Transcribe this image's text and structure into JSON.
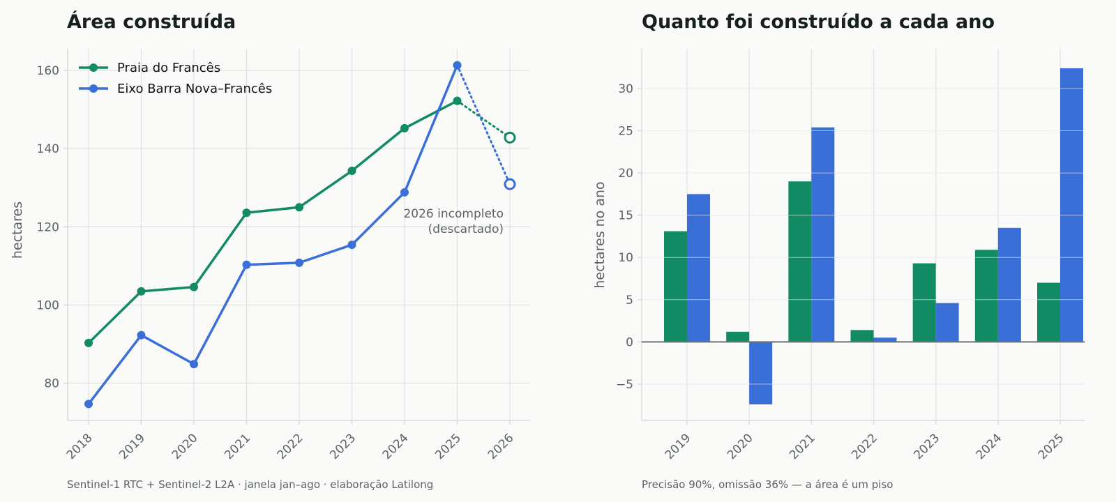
{
  "colors": {
    "green": "#128a63",
    "blue": "#3a6fd8",
    "grid": "#dde3e0",
    "text": "#5b6360"
  },
  "chart_data": [
    {
      "type": "line",
      "title": "Área construída",
      "xlabel": "",
      "ylabel": "hectares",
      "x": [
        "2018",
        "2019",
        "2020",
        "2021",
        "2022",
        "2023",
        "2024",
        "2025",
        "2026"
      ],
      "ylim": [
        70.5,
        165.5
      ],
      "yticks": [
        80,
        100,
        120,
        140,
        160
      ],
      "grid": true,
      "legend_position": "top-left",
      "series": [
        {
          "name": "Praia do Francês",
          "color": "#128a63",
          "values": [
            90.3,
            103.5,
            104.6,
            123.6,
            125.0,
            134.3,
            145.2,
            152.2,
            142.8
          ]
        },
        {
          "name": "Eixo Barra Nova–Francês",
          "color": "#3a6fd8",
          "values": [
            74.7,
            92.3,
            84.9,
            110.3,
            110.8,
            115.4,
            128.8,
            161.3,
            130.9
          ]
        }
      ],
      "incomplete_point": "2026",
      "annotation": [
        "2026 incompleto",
        "(descartado)"
      ],
      "footer": "Sentinel-1 RTC + Sentinel-2 L2A · janela jan–ago · elaboração Latilong"
    },
    {
      "type": "bar",
      "title": "Quanto foi construído a cada ano",
      "xlabel": "",
      "ylabel": "hectares no ano",
      "categories": [
        "2019",
        "2020",
        "2021",
        "2022",
        "2023",
        "2024",
        "2025"
      ],
      "ylim": [
        -9.3,
        34.7
      ],
      "yticks": [
        -5,
        0,
        5,
        10,
        15,
        20,
        25,
        30
      ],
      "grid": true,
      "series": [
        {
          "color": "#128a63",
          "values": [
            13.1,
            1.2,
            19.0,
            1.4,
            9.3,
            10.9,
            7.0
          ]
        },
        {
          "color": "#3a6fd8",
          "values": [
            17.5,
            -7.4,
            25.4,
            0.5,
            4.6,
            13.5,
            32.4
          ]
        }
      ],
      "footer": "Precisão 90%, omissão 36% — a área é um piso"
    }
  ]
}
